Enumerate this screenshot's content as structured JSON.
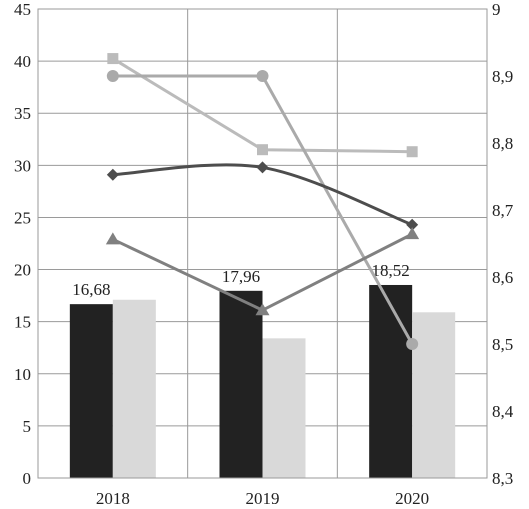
{
  "chart_data": {
    "type": "bar",
    "categories": [
      "2018",
      "2019",
      "2020"
    ],
    "title": "",
    "xlabel": "",
    "ylabel": "",
    "ylim": [
      0,
      45
    ],
    "y_ticks": [
      "0",
      "5",
      "10",
      "15",
      "20",
      "25",
      "30",
      "35",
      "40",
      "45"
    ],
    "y2lim": [
      8.3,
      9.0
    ],
    "y2_ticks": [
      "8,3",
      "8,4",
      "8,5",
      "8,6",
      "8,7",
      "8,8",
      "8,9",
      "9"
    ],
    "grid": true,
    "legend": "none",
    "bar_series": [
      {
        "axis": "left",
        "color": "#222222",
        "values": [
          16.68,
          17.96,
          18.52
        ],
        "labels": [
          "16,68",
          "17,96",
          "18,52"
        ]
      },
      {
        "axis": "left",
        "color": "#d9d9d9",
        "values": [
          17.1,
          13.4,
          15.9
        ]
      }
    ],
    "line_series": [
      {
        "axis": "right",
        "color": "#bbbbbb",
        "marker": "square",
        "smooth": false,
        "values": [
          8.926,
          8.79,
          8.787
        ]
      },
      {
        "axis": "right",
        "color": "#aaaaaa",
        "marker": "circle",
        "smooth": false,
        "values": [
          8.9,
          8.9,
          8.5
        ]
      },
      {
        "axis": "left",
        "color": "#4d4d4d",
        "marker": "diamond",
        "smooth": true,
        "values": [
          29.1,
          29.8,
          24.3
        ]
      },
      {
        "axis": "left",
        "color": "#808080",
        "marker": "triangle",
        "smooth": false,
        "values": [
          22.9,
          16.1,
          23.4
        ]
      }
    ]
  }
}
